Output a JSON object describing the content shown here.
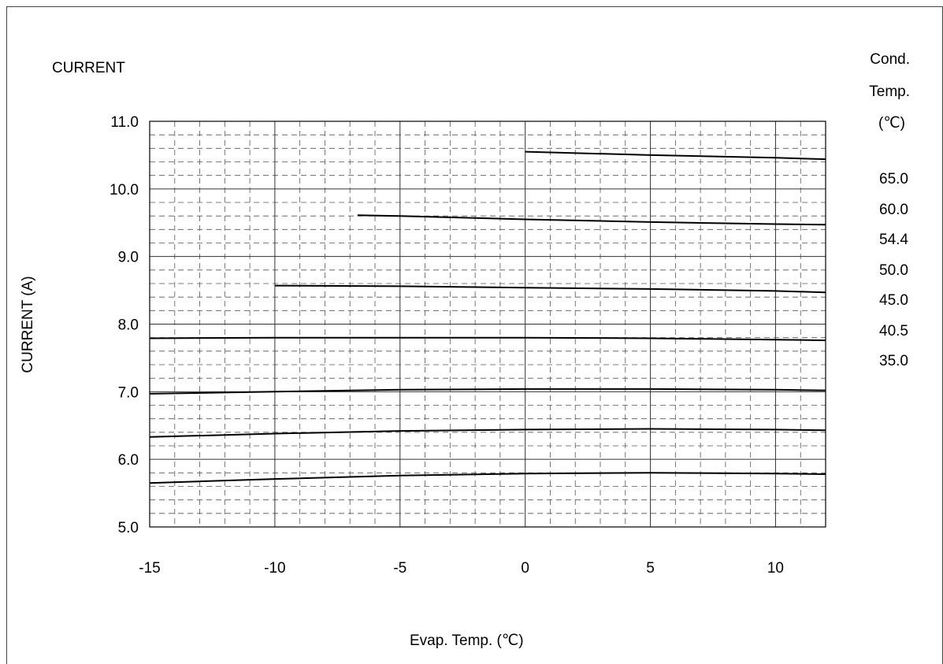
{
  "chart_data": {
    "type": "line",
    "title": "CURRENT",
    "xlabel": "Evap. Temp. (℃)",
    "ylabel": "CURRENT (A)",
    "xlim": [
      -15,
      12
    ],
    "ylim": [
      5.0,
      11.0
    ],
    "x_ticks": [
      "-15",
      "-10",
      "-5",
      "0",
      "5",
      "10"
    ],
    "y_ticks": [
      "5.0",
      "6.0",
      "7.0",
      "8.0",
      "9.0",
      "10.0",
      "11.0"
    ],
    "grid": true,
    "legend_title": [
      "Cond.",
      "Temp.",
      "(℃)"
    ],
    "legend_labels": [
      "65.0",
      "60.0",
      "54.4",
      "50.0",
      "45.0",
      "40.5",
      "35.0"
    ],
    "series": [
      {
        "name": "65.0",
        "x": [
          0,
          5,
          10,
          12
        ],
        "y": [
          10.55,
          10.5,
          10.46,
          10.44
        ]
      },
      {
        "name": "60.0",
        "x": [
          -6.7,
          -5,
          0,
          5,
          10,
          12
        ],
        "y": [
          9.61,
          9.6,
          9.55,
          9.51,
          9.48,
          9.47
        ]
      },
      {
        "name": "54.4",
        "x": [
          -10,
          -5,
          0,
          5,
          10,
          12
        ],
        "y": [
          8.57,
          8.56,
          8.54,
          8.52,
          8.49,
          8.47
        ]
      },
      {
        "name": "50.0",
        "x": [
          -15,
          -10,
          -5,
          0,
          5,
          10,
          12
        ],
        "y": [
          7.79,
          7.8,
          7.8,
          7.8,
          7.79,
          7.77,
          7.76
        ]
      },
      {
        "name": "45.0",
        "x": [
          -15,
          -10,
          -5,
          0,
          5,
          10,
          12
        ],
        "y": [
          6.97,
          7.0,
          7.03,
          7.04,
          7.04,
          7.03,
          7.02
        ]
      },
      {
        "name": "40.5",
        "x": [
          -15,
          -10,
          -5,
          0,
          5,
          10,
          12
        ],
        "y": [
          6.33,
          6.38,
          6.42,
          6.44,
          6.45,
          6.44,
          6.43
        ]
      },
      {
        "name": "35.0",
        "x": [
          -15,
          -10,
          -5,
          0,
          5,
          10,
          12
        ],
        "y": [
          5.65,
          5.71,
          5.76,
          5.79,
          5.8,
          5.79,
          5.78
        ]
      }
    ]
  }
}
